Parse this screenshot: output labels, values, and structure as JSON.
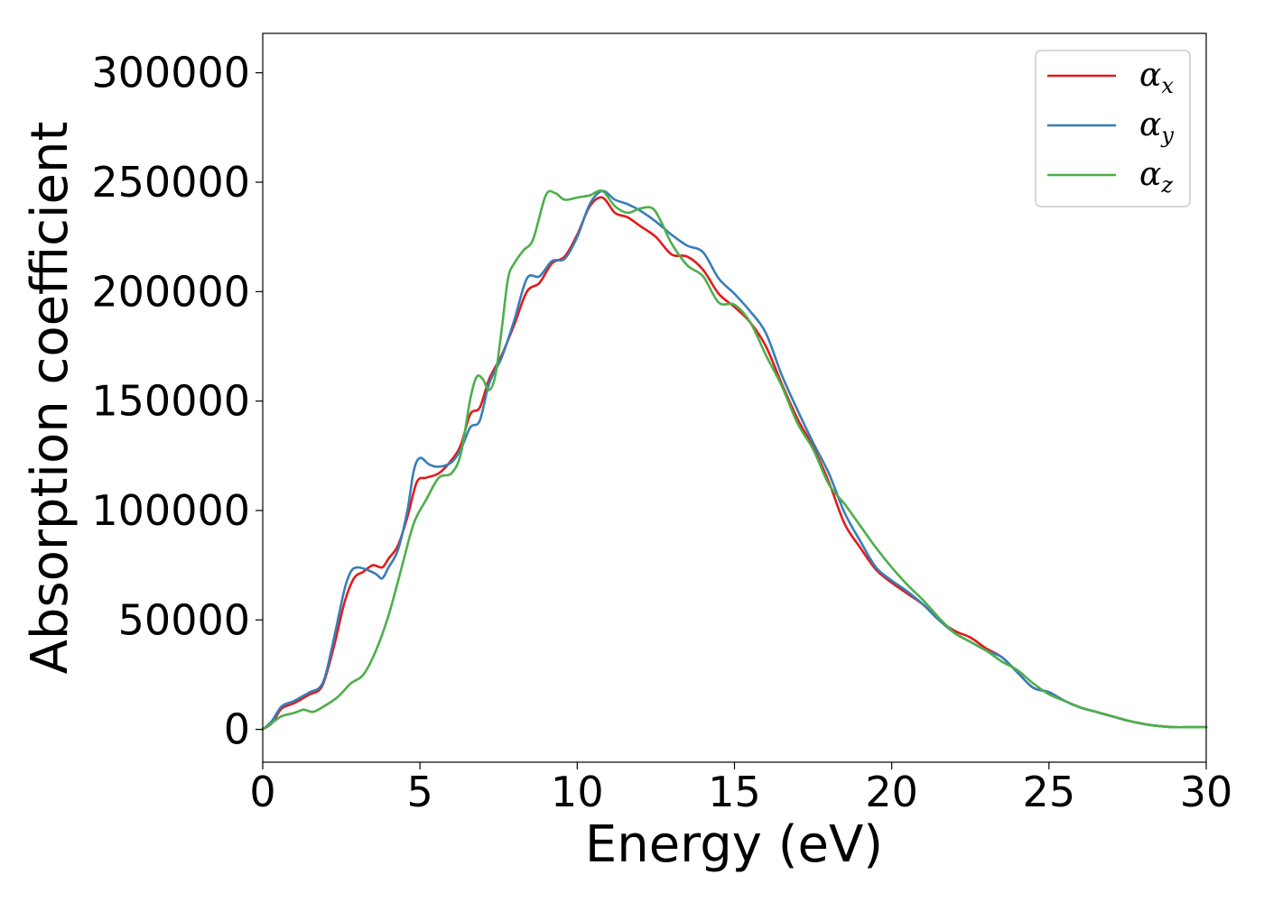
{
  "chart_data": {
    "type": "line",
    "title": "",
    "xlabel": "Energy (eV)",
    "ylabel": "Absorption coefficient",
    "xlim": [
      0,
      30
    ],
    "ylim": [
      -15000,
      318000
    ],
    "xticks": [
      0,
      5,
      10,
      15,
      20,
      25,
      30
    ],
    "yticks": [
      0,
      50000,
      100000,
      150000,
      200000,
      250000,
      300000
    ],
    "xtick_labels": [
      "0",
      "5",
      "10",
      "15",
      "20",
      "25",
      "30"
    ],
    "ytick_labels": [
      "0",
      "50000",
      "100000",
      "150000",
      "200000",
      "250000",
      "300000"
    ],
    "grid": false,
    "legend_position": "top-right",
    "series": [
      {
        "name": "α_x",
        "legend_symbol": "α",
        "legend_subscript": "x",
        "color": "#e41a1c",
        "x": [
          0,
          0.3,
          0.6,
          1.0,
          1.5,
          1.8,
          2.0,
          2.3,
          2.6,
          2.9,
          3.2,
          3.5,
          3.8,
          4.0,
          4.3,
          4.6,
          4.9,
          5.2,
          5.6,
          6.0,
          6.3,
          6.6,
          6.9,
          7.2,
          7.6,
          8.0,
          8.4,
          8.8,
          9.2,
          9.6,
          10.0,
          10.4,
          10.8,
          11.2,
          11.6,
          12.0,
          12.5,
          13.0,
          13.5,
          14.0,
          14.5,
          15.0,
          15.5,
          16.0,
          16.5,
          17.0,
          17.5,
          18.0,
          18.5,
          19.0,
          19.5,
          20.0,
          20.5,
          21.0,
          21.5,
          22.0,
          22.5,
          23.0,
          23.5,
          24.0,
          24.5,
          25.0,
          25.5,
          26.0,
          26.5,
          27.0,
          27.5,
          28.0,
          28.5,
          29.0,
          29.5,
          30.0
        ],
        "y": [
          0,
          3000,
          9500,
          12000,
          16000,
          18000,
          24000,
          40000,
          58000,
          69000,
          72000,
          75000,
          74000,
          78000,
          84000,
          97000,
          113000,
          115000,
          117000,
          123000,
          130000,
          144000,
          147000,
          160000,
          171000,
          185000,
          200000,
          204000,
          213000,
          216000,
          226000,
          239000,
          243000,
          236000,
          234000,
          230000,
          225000,
          217000,
          216000,
          210000,
          199000,
          193000,
          186000,
          175000,
          158000,
          142000,
          129000,
          113000,
          94000,
          83000,
          73000,
          67000,
          62000,
          57000,
          50000,
          45000,
          42000,
          37000,
          33000,
          26000,
          19000,
          17000,
          13000,
          10000,
          8000,
          6000,
          4000,
          2500,
          1500,
          1000,
          1000,
          1000
        ]
      },
      {
        "name": "α_y",
        "legend_symbol": "α",
        "legend_subscript": "y",
        "color": "#377eb8",
        "x": [
          0,
          0.3,
          0.6,
          1.0,
          1.5,
          1.8,
          2.0,
          2.3,
          2.6,
          2.8,
          3.0,
          3.3,
          3.6,
          3.8,
          4.0,
          4.3,
          4.6,
          4.8,
          5.0,
          5.3,
          5.6,
          6.0,
          6.3,
          6.6,
          6.9,
          7.2,
          7.6,
          8.0,
          8.4,
          8.8,
          9.2,
          9.6,
          10.0,
          10.4,
          10.8,
          11.2,
          11.6,
          12.0,
          12.5,
          13.0,
          13.5,
          14.0,
          14.5,
          15.0,
          15.5,
          16.0,
          16.5,
          17.0,
          17.5,
          18.0,
          18.5,
          19.0,
          19.5,
          20.0,
          20.5,
          21.0,
          21.5,
          22.0,
          22.5,
          23.0,
          23.5,
          24.0,
          24.5,
          25.0,
          25.5,
          26.0,
          26.5,
          27.0,
          27.5,
          28.0,
          28.5,
          29.0,
          29.5,
          30.0
        ],
        "y": [
          0,
          4000,
          10500,
          13000,
          17000,
          19000,
          25000,
          44000,
          64000,
          72000,
          74000,
          73000,
          71000,
          69000,
          74000,
          82000,
          100000,
          118000,
          124000,
          121000,
          120000,
          122000,
          128000,
          138000,
          141000,
          158000,
          170000,
          187000,
          206000,
          207000,
          214000,
          215000,
          225000,
          240000,
          246000,
          242000,
          240000,
          237000,
          232000,
          226000,
          221000,
          218000,
          206000,
          199000,
          191000,
          181000,
          162000,
          146000,
          131000,
          117000,
          99000,
          86000,
          74000,
          68000,
          63000,
          57000,
          50000,
          44000,
          40000,
          36000,
          33000,
          26000,
          19000,
          17000,
          13000,
          10000,
          8000,
          6000,
          4000,
          2500,
          1500,
          1000,
          1000,
          1000
        ]
      },
      {
        "name": "α_z",
        "legend_symbol": "α",
        "legend_subscript": "z",
        "color": "#4daf4a",
        "x": [
          0,
          0.3,
          0.6,
          1.0,
          1.3,
          1.6,
          2.0,
          2.4,
          2.8,
          3.2,
          3.6,
          4.0,
          4.4,
          4.8,
          5.2,
          5.6,
          6.0,
          6.3,
          6.6,
          6.8,
          7.0,
          7.2,
          7.4,
          7.6,
          7.8,
          8.0,
          8.3,
          8.6,
          9.0,
          9.3,
          9.6,
          10.0,
          10.4,
          10.8,
          11.2,
          11.6,
          12.0,
          12.4,
          12.7,
          13.0,
          13.5,
          14.0,
          14.5,
          15.0,
          15.5,
          16.0,
          16.5,
          17.0,
          17.5,
          18.0,
          18.5,
          19.0,
          19.5,
          20.0,
          20.5,
          21.0,
          21.5,
          22.0,
          22.5,
          23.0,
          23.5,
          24.0,
          24.5,
          25.0,
          25.5,
          26.0,
          26.5,
          27.0,
          27.5,
          28.0,
          28.5,
          29.0,
          29.5,
          30.0
        ],
        "y": [
          0,
          3000,
          6000,
          7500,
          9000,
          8000,
          11000,
          15000,
          21000,
          25000,
          36000,
          52000,
          73000,
          94000,
          105000,
          115000,
          117000,
          126000,
          151000,
          161000,
          160000,
          155000,
          162000,
          183000,
          206000,
          213000,
          219000,
          224000,
          244000,
          245000,
          242000,
          243000,
          244000,
          246000,
          239000,
          236000,
          238000,
          238000,
          231000,
          222000,
          212000,
          207000,
          195000,
          194000,
          186000,
          171000,
          157000,
          140000,
          128000,
          112000,
          103000,
          93000,
          83000,
          74000,
          66000,
          59000,
          51000,
          44000,
          40000,
          36000,
          31000,
          27000,
          21000,
          16000,
          13000,
          10000,
          8000,
          6000,
          4000,
          2500,
          1500,
          1000,
          1000,
          1000
        ]
      }
    ]
  }
}
